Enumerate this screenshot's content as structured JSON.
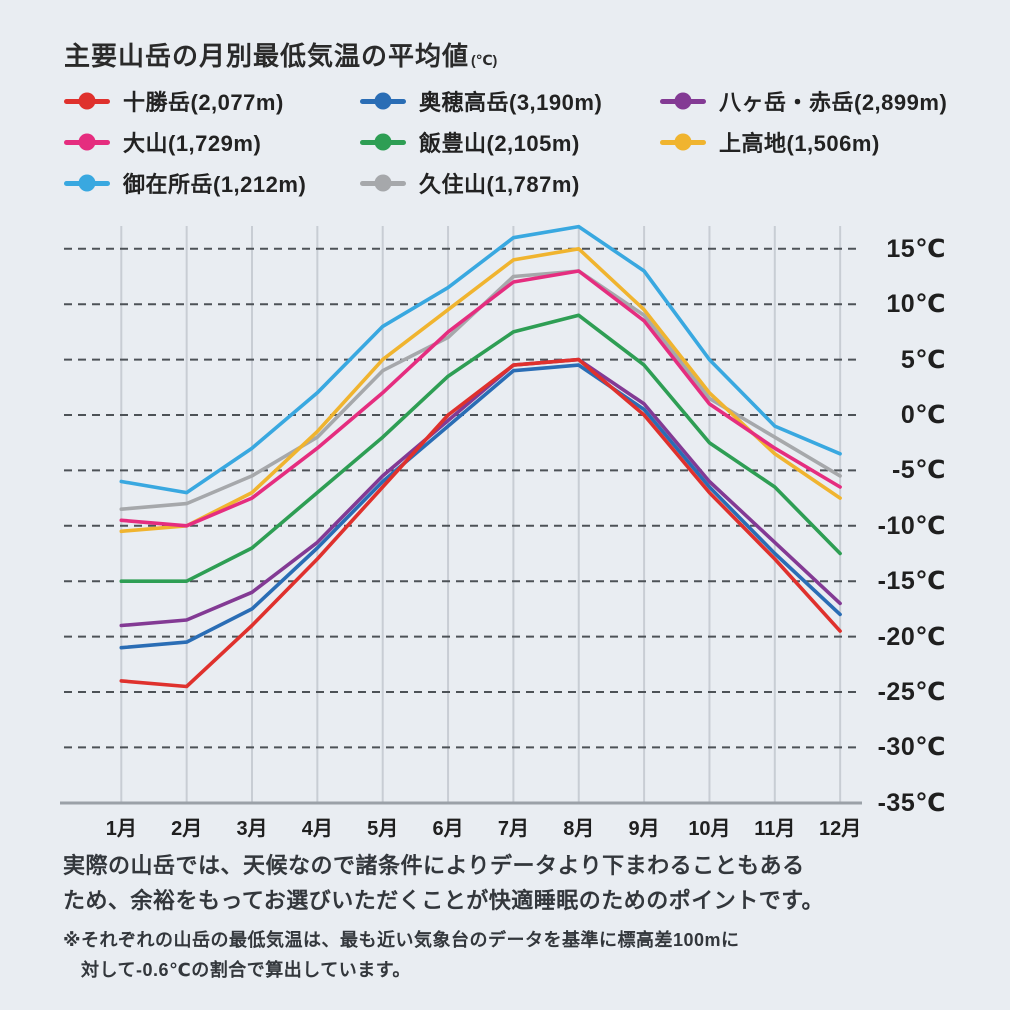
{
  "title": {
    "text": "主要山岳の月別最低気温の平均値",
    "unit": "(℃)"
  },
  "legend": {
    "items": [
      {
        "label": "十勝岳(2,077m)",
        "color": "#df312d"
      },
      {
        "label": "奥穂高岳(3,190m)",
        "color": "#2a6db5"
      },
      {
        "label": "八ヶ岳・赤岳(2,899m)",
        "color": "#833a94"
      },
      {
        "label": "大山(1,729m)",
        "color": "#e52d7f"
      },
      {
        "label": "飯豊山(2,105m)",
        "color": "#2e9e54"
      },
      {
        "label": "上高地(1,506m)",
        "color": "#f0b42f"
      },
      {
        "label": "御在所岳(1,212m)",
        "color": "#39a8e0"
      },
      {
        "label": "久住山(1,787m)",
        "color": "#a6a8ab"
      }
    ]
  },
  "chart_data": {
    "type": "line",
    "title": "主要山岳の月別最低気温の平均値(℃)",
    "categories": [
      "1月",
      "2月",
      "3月",
      "4月",
      "5月",
      "6月",
      "7月",
      "8月",
      "9月",
      "10月",
      "11月",
      "12月"
    ],
    "series": [
      {
        "name": "十勝岳(2,077m)",
        "color": "#df312d",
        "values": [
          -24,
          -24.5,
          -19,
          -13,
          -6.5,
          0,
          4.5,
          5,
          0,
          -7,
          -13,
          -19.5
        ]
      },
      {
        "name": "奥穂高岳(3,190m)",
        "color": "#2a6db5",
        "values": [
          -21,
          -20.5,
          -17.5,
          -12,
          -6,
          -1,
          4,
          4.5,
          0.5,
          -6.5,
          -12.5,
          -18
        ]
      },
      {
        "name": "八ヶ岳・赤岳(2,899m)",
        "color": "#833a94",
        "values": [
          -19,
          -18.5,
          -16,
          -11.5,
          -5.5,
          -0.5,
          4.5,
          5,
          1,
          -6,
          -11.5,
          -17
        ]
      },
      {
        "name": "大山(1,729m)",
        "color": "#e52d7f",
        "values": [
          -9.5,
          -10,
          -7.5,
          -3,
          2,
          7.5,
          12,
          13,
          8.5,
          1,
          -3,
          -6.5
        ]
      },
      {
        "name": "飯豊山(2,105m)",
        "color": "#2e9e54",
        "values": [
          -15,
          -15,
          -12,
          -7,
          -2,
          3.5,
          7.5,
          9,
          4.5,
          -2.5,
          -6.5,
          -12.5
        ]
      },
      {
        "name": "上高地(1,506m)",
        "color": "#f0b42f",
        "values": [
          -10.5,
          -10,
          -7,
          -1.5,
          5,
          9.5,
          14,
          15,
          9.5,
          2,
          -3.5,
          -7.5
        ]
      },
      {
        "name": "御在所岳(1,212m)",
        "color": "#39a8e0",
        "values": [
          -6,
          -7,
          -3,
          2,
          8,
          11.5,
          16,
          17,
          13,
          5,
          -1,
          -3.5
        ]
      },
      {
        "name": "久住山(1,787m)",
        "color": "#a6a8ab",
        "values": [
          -8.5,
          -8,
          -5.5,
          -2,
          4,
          7,
          12.5,
          13,
          9,
          1.5,
          -2,
          -5.5
        ]
      }
    ],
    "yticks": [
      15,
      10,
      5,
      0,
      -5,
      -10,
      -15,
      -20,
      -25,
      -30,
      -35
    ],
    "ytick_suffix": "℃",
    "ylim": [
      -35,
      17.5
    ],
    "xlabel": "",
    "ylabel": "",
    "grid": "horizontal dashed dark, vertical solid light",
    "legend_position": "top-left"
  },
  "notes": {
    "body": "実際の山岳では、天候なので諸条件によりデータより下まわることもある\nため、余裕をもってお選びいただくことが快適睡眠のためのポイントです。",
    "footnote": "※それぞれの山岳の最低気温は、最も近い気象台のデータを基準に標高差100mに\n対して-0.6℃の割合で算出しています。"
  }
}
